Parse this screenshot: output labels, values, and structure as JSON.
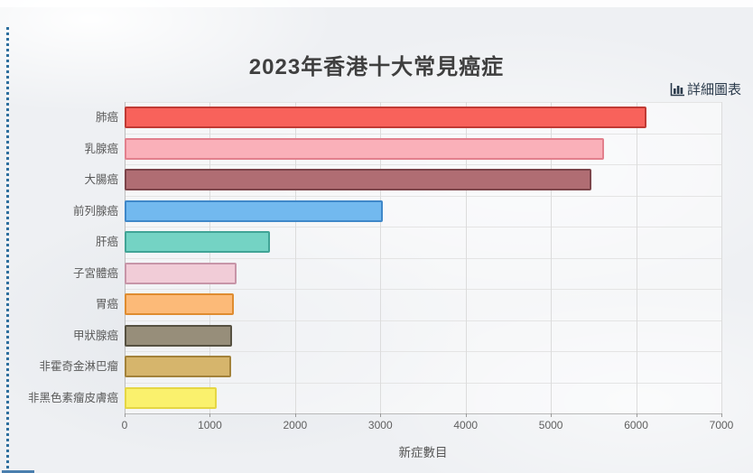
{
  "page": {
    "title": "2023年香港十大常見癌症",
    "detail_link_label": "詳細圖表"
  },
  "colors": {
    "dotted_border": "#2e6f9e",
    "link_text": "#2b3b4c",
    "title_text": "#3f3f3f",
    "gridline": "#dcdcdc",
    "axis_line": "#bdbdbd"
  },
  "chart_data": {
    "type": "bar",
    "orientation": "horizontal",
    "title": "2023年香港十大常見癌症",
    "xlabel": "新症數目",
    "ylabel": "",
    "xlim": [
      0,
      7000
    ],
    "x_ticks": [
      0,
      1000,
      2000,
      3000,
      4000,
      5000,
      6000,
      7000
    ],
    "grid": true,
    "legend": "none",
    "categories": [
      "肺癌",
      "乳腺癌",
      "大腸癌",
      "前列腺癌",
      "肝癌",
      "子宮體癌",
      "胃癌",
      "甲狀腺癌",
      "非霍奇金淋巴瘤",
      "非黑色素瘤皮膚癌"
    ],
    "values": [
      6120,
      5620,
      5470,
      3030,
      1700,
      1315,
      1285,
      1260,
      1250,
      1085
    ],
    "bar_fill_colors": [
      "#f8625b",
      "#fab0b9",
      "#b06d73",
      "#72b9ef",
      "#74d3c4",
      "#f1ccd7",
      "#fcba78",
      "#978e7a",
      "#d6b56c",
      "#faf16d"
    ],
    "bar_border_colors": [
      "#c03a34",
      "#e2808d",
      "#7c444a",
      "#3f88c9",
      "#41a496",
      "#c795a8",
      "#df8c30",
      "#565141",
      "#a3823a",
      "#e5d644"
    ]
  }
}
